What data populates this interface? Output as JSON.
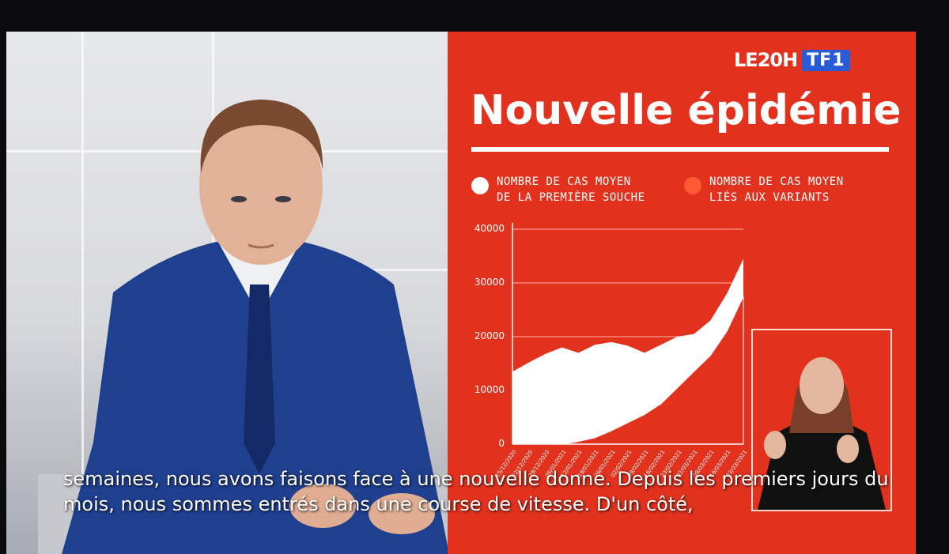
{
  "logo": {
    "le20h": "LE20H",
    "tf1": "TF1"
  },
  "title": "Nouvelle épidémie",
  "legend": [
    {
      "label": "NOMBRE DE CAS MOYEN\nDE LA PREMIÈRE SOUCHE",
      "color": "#ffffff"
    },
    {
      "label": "NOMBRE DE CAS MOYEN\nLIÉS AUX VARIANTS",
      "color": "#ff5a33"
    }
  ],
  "subtitles": [
    "semaines, nous avons faisons face à une nouvelle donne. Depuis les premiers jours du",
    "mois, nous sommes entrés dans une course de vitesse. D'un côté,"
  ],
  "chart_data": {
    "type": "area",
    "ylim": [
      0,
      40000
    ],
    "yticks": [
      "40000",
      "30000",
      "20000",
      "10000",
      "0"
    ],
    "x": [
      "15/12/2020",
      "22/12/2020",
      "29/12/2020",
      "05/01/2021",
      "12/01/2021",
      "19/01/2021",
      "26/01/2021",
      "02/02/2021",
      "09/02/2021",
      "16/02/2021",
      "23/02/2021",
      "02/03/2021",
      "09/03/2021",
      "16/03/2021",
      "23/03/2021"
    ],
    "series": [
      {
        "name": "NOMBRE DE CAS MOYEN DE LA PREMIÈRE SOUCHE",
        "color": "#ffffff",
        "values": [
          13500,
          15200,
          16800,
          18000,
          17000,
          18500,
          19000,
          18300,
          17000,
          18500,
          20000,
          20500,
          23000,
          28000,
          34500
        ]
      },
      {
        "name": "NOMBRE DE CAS MOYEN LIÉS AUX VARIANTS",
        "color": "#e2321e",
        "values": [
          null,
          null,
          null,
          0,
          500,
          1200,
          2500,
          4000,
          5500,
          7500,
          10500,
          13500,
          16500,
          21000,
          27500
        ]
      }
    ]
  }
}
